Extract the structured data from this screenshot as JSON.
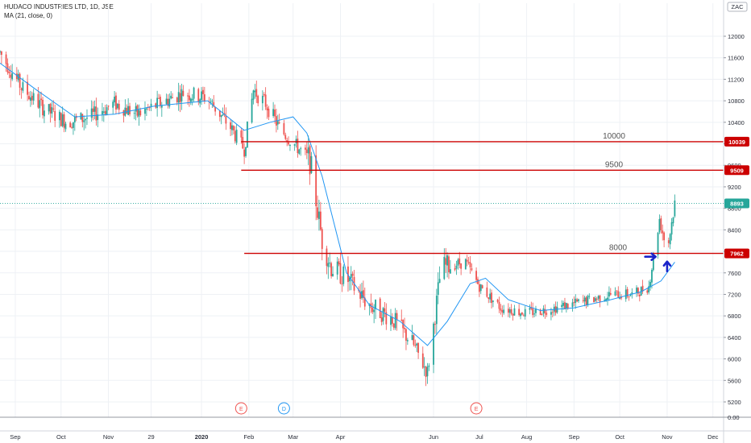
{
  "header": {
    "symbol_line": "HUDACO INDUSTRIES LTD, 1D, JSE",
    "indicator_line": "MA (21, close, 0)"
  },
  "currency_label": "ZAC",
  "colors": {
    "up": "#26a69a",
    "down": "#ef5350",
    "ma": "#2196f3",
    "level": "#cc0000",
    "arrow": "#1a23c9",
    "current": "#26a69a",
    "grid": "#eef1f5"
  },
  "levels": [
    {
      "value": 10039,
      "tag": "10039",
      "label": "10000",
      "from": "2020-01-27"
    },
    {
      "value": 9509,
      "tag": "9509",
      "label": "9500",
      "from": "2020-01-27"
    },
    {
      "value": 7962,
      "tag": "7962",
      "label": "8000",
      "from": "2020-01-29"
    }
  ],
  "current_price": {
    "value": 8893,
    "tag": "8893"
  },
  "events": [
    {
      "date": "2020-01-27",
      "letter": "E",
      "kind": "earnings"
    },
    {
      "date": "2020-02-24",
      "letter": "D",
      "kind": "dividend"
    },
    {
      "date": "2020-06-29",
      "letter": "E",
      "kind": "earnings"
    }
  ],
  "arrows": [
    {
      "date": "2020-10-25",
      "value": 7900,
      "direction": "right"
    },
    {
      "date": "2020-11-01",
      "value": 7810,
      "direction": "up"
    }
  ],
  "chart_data": {
    "type": "candlestick",
    "title": "HUDACO INDUSTRIES LTD, 1D, JSE",
    "indicator": "MA (21, close, 0)",
    "x_start": "2019-08-22",
    "x_end": "2020-12-08",
    "x_tick_labels": [
      {
        "date": "2019-09-01",
        "label": "Sep"
      },
      {
        "date": "2019-10-01",
        "label": "Oct"
      },
      {
        "date": "2019-11-01",
        "label": "Nov"
      },
      {
        "date": "2019-11-29",
        "label": "29"
      },
      {
        "date": "2020-01-01",
        "label": "2020"
      },
      {
        "date": "2020-02-01",
        "label": "Feb"
      },
      {
        "date": "2020-03-01",
        "label": "Mar"
      },
      {
        "date": "2020-04-01",
        "label": "Apr"
      },
      {
        "date": "2020-06-01",
        "label": "Jun"
      },
      {
        "date": "2020-07-01",
        "label": "Jul"
      },
      {
        "date": "2020-08-01",
        "label": "Aug"
      },
      {
        "date": "2020-09-01",
        "label": "Sep"
      },
      {
        "date": "2020-10-01",
        "label": "Oct"
      },
      {
        "date": "2020-11-01",
        "label": "Nov"
      },
      {
        "date": "2020-12-01",
        "label": "Dec"
      }
    ],
    "y_ticks": [
      12000,
      11600,
      11200,
      10800,
      10400,
      10000,
      9600,
      9200,
      8800,
      8400,
      8000,
      7600,
      7200,
      6800,
      6400,
      6000,
      5600,
      5200
    ],
    "y_tick_labels": [
      "12000",
      "11600",
      "11200",
      "10800",
      "10400",
      "10000",
      "9600",
      "9200",
      "8800",
      "8400",
      "8000",
      "7600",
      "7200",
      "6800",
      "6400",
      "6000",
      "5600",
      "5200"
    ],
    "y_zero_label": "0.00",
    "ylim": [
      5000,
      12300
    ],
    "grid": true,
    "price_path": [
      [
        "2019-08-22",
        11700
      ],
      [
        "2019-09-05",
        11050
      ],
      [
        "2019-09-20",
        10650
      ],
      [
        "2019-10-05",
        10400
      ],
      [
        "2019-10-20",
        10500
      ],
      [
        "2019-11-05",
        10750
      ],
      [
        "2019-11-20",
        10550
      ],
      [
        "2019-12-05",
        10750
      ],
      [
        "2019-12-20",
        10950
      ],
      [
        "2020-01-05",
        10850
      ],
      [
        "2020-01-20",
        10300
      ],
      [
        "2020-01-29",
        9900
      ],
      [
        "2020-02-04",
        11000
      ],
      [
        "2020-02-12",
        10750
      ],
      [
        "2020-02-22",
        10250
      ],
      [
        "2020-03-05",
        9900
      ],
      [
        "2020-03-12",
        9700
      ],
      [
        "2020-03-20",
        8200
      ],
      [
        "2020-03-26",
        7700
      ],
      [
        "2020-04-05",
        7500
      ],
      [
        "2020-04-20",
        7000
      ],
      [
        "2020-05-05",
        6750
      ],
      [
        "2020-05-18",
        6300
      ],
      [
        "2020-05-28",
        5750
      ],
      [
        "2020-06-06",
        7700
      ],
      [
        "2020-06-22",
        7800
      ],
      [
        "2020-07-01",
        7350
      ],
      [
        "2020-07-15",
        6950
      ],
      [
        "2020-08-01",
        6850
      ],
      [
        "2020-08-20",
        6950
      ],
      [
        "2020-09-05",
        7050
      ],
      [
        "2020-09-25",
        7200
      ],
      [
        "2020-10-10",
        7200
      ],
      [
        "2020-10-20",
        7350
      ],
      [
        "2020-10-27",
        8600
      ],
      [
        "2020-11-01",
        8000
      ],
      [
        "2020-11-06",
        8893
      ]
    ],
    "ma_path": [
      [
        "2019-08-22",
        11500
      ],
      [
        "2019-09-15",
        11000
      ],
      [
        "2019-10-10",
        10500
      ],
      [
        "2019-11-05",
        10550
      ],
      [
        "2019-12-01",
        10700
      ],
      [
        "2020-01-05",
        10800
      ],
      [
        "2020-01-29",
        10250
      ],
      [
        "2020-02-15",
        10400
      ],
      [
        "2020-03-01",
        10500
      ],
      [
        "2020-03-10",
        10200
      ],
      [
        "2020-03-20",
        9400
      ],
      [
        "2020-04-05",
        7600
      ],
      [
        "2020-04-20",
        7000
      ],
      [
        "2020-05-10",
        6700
      ],
      [
        "2020-05-28",
        6250
      ],
      [
        "2020-06-10",
        6700
      ],
      [
        "2020-06-25",
        7400
      ],
      [
        "2020-07-05",
        7500
      ],
      [
        "2020-07-20",
        7100
      ],
      [
        "2020-08-10",
        6900
      ],
      [
        "2020-09-01",
        6950
      ],
      [
        "2020-09-25",
        7100
      ],
      [
        "2020-10-15",
        7250
      ],
      [
        "2020-10-28",
        7450
      ],
      [
        "2020-11-06",
        7800
      ]
    ]
  }
}
